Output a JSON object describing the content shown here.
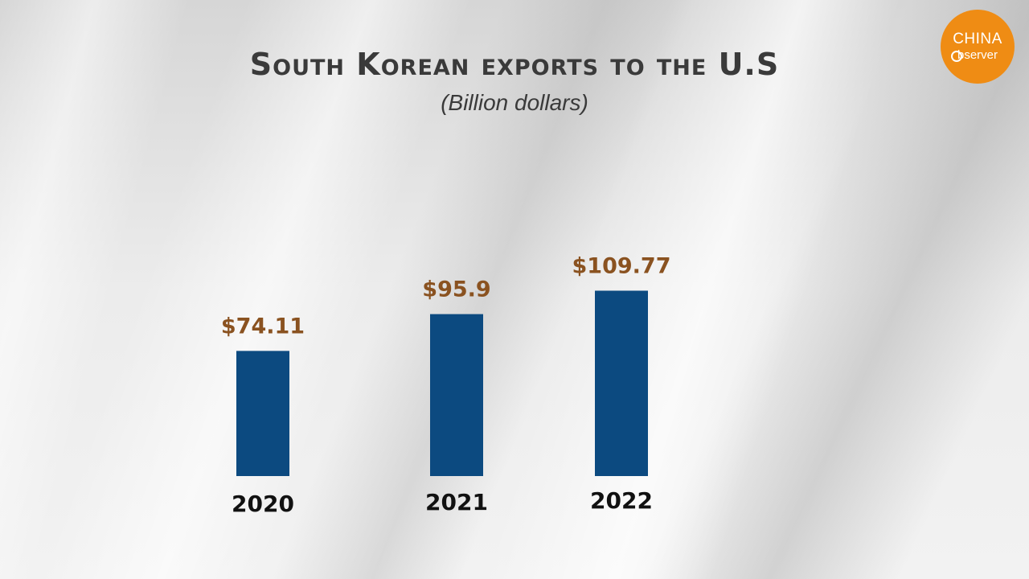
{
  "chart_data": {
    "type": "bar",
    "title": "South Korean exports to the U.S",
    "subtitle": "(Billion dollars)",
    "categories": [
      "2020",
      "2021",
      "2022"
    ],
    "values": [
      74.11,
      95.9,
      109.77
    ],
    "value_labels": [
      "$74.11",
      "$95.9",
      "$109.77"
    ],
    "bar_color": "#0c4a80",
    "value_label_color": "#8a5220",
    "axes_visible": false,
    "grid": false,
    "legend": "none"
  },
  "logo": {
    "line1": "CHINA",
    "line2": "bserver",
    "color": "#ef8c14",
    "icon": "magnifier-icon"
  }
}
